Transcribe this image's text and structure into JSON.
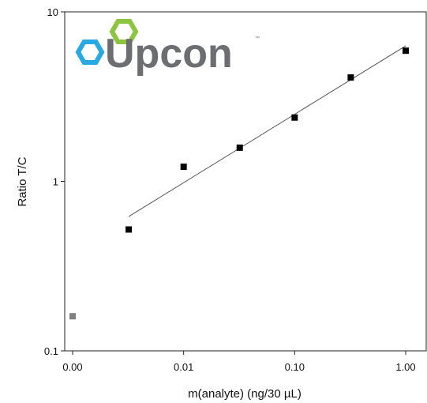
{
  "logo": {
    "text": "Upcon",
    "tm": "™",
    "colors": {
      "blue": "#27a9e1",
      "green": "#8cc63f",
      "text": "#6d6e71"
    }
  },
  "chart_data": {
    "type": "scatter",
    "title": "",
    "xlabel": "m(analyte) (ng/30 µL)",
    "ylabel": "Ratio T/C",
    "x_scale": "log",
    "y_scale": "log",
    "xlim": [
      0.001,
      1
    ],
    "ylim": [
      0.1,
      10
    ],
    "x_ticks": [
      {
        "label": "0.00",
        "value": 0.001
      },
      {
        "label": "0.01",
        "value": 0.01
      },
      {
        "label": "0.10",
        "value": 0.1
      },
      {
        "label": "1.00",
        "value": 1
      }
    ],
    "y_ticks": [
      {
        "label": "0.1",
        "value": 0.1
      },
      {
        "label": "1",
        "value": 1
      },
      {
        "label": "10",
        "value": 10
      }
    ],
    "grid": false,
    "series": [
      {
        "marker": "square",
        "color": "#000000",
        "points": [
          {
            "x": 0.0032,
            "y": 0.52
          },
          {
            "x": 0.01,
            "y": 1.22
          },
          {
            "x": 0.032,
            "y": 1.58
          },
          {
            "x": 0.1,
            "y": 2.38
          },
          {
            "x": 0.32,
            "y": 4.1
          },
          {
            "x": 1.0,
            "y": 5.9
          }
        ]
      },
      {
        "marker": "square",
        "color": "#808080",
        "points": [
          {
            "x": 0.001,
            "y": 0.16
          }
        ]
      }
    ],
    "trendline": {
      "type": "power",
      "color": "#555555",
      "from": {
        "x": 0.0032,
        "y": 0.62
      },
      "to": {
        "x": 1.0,
        "y": 6.3
      }
    }
  }
}
